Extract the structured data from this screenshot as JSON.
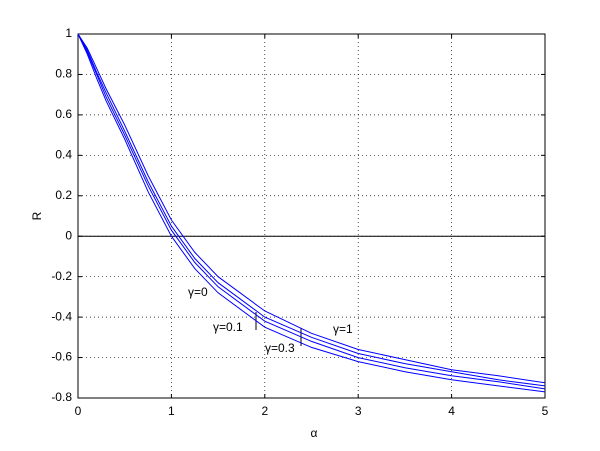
{
  "chart_data": {
    "type": "line",
    "x_label": "α",
    "y_label": "R",
    "x": [
      0,
      0.1,
      0.2,
      0.3,
      0.5,
      0.75,
      1,
      1.25,
      1.5,
      2,
      2.5,
      3,
      3.5,
      4,
      4.5,
      5
    ],
    "series": [
      {
        "name": "γ=0",
        "color": "#0000ff",
        "values": [
          1,
          0.93,
          0.83,
          0.73,
          0.55,
          0.3,
          0.08,
          -0.08,
          -0.2,
          -0.37,
          -0.48,
          -0.56,
          -0.61,
          -0.66,
          -0.69,
          -0.725
        ]
      },
      {
        "name": "γ=0.1",
        "color": "#0000ff",
        "values": [
          1,
          0.92,
          0.81,
          0.71,
          0.52,
          0.27,
          0.05,
          -0.11,
          -0.23,
          -0.4,
          -0.5,
          -0.58,
          -0.63,
          -0.67,
          -0.71,
          -0.74
        ]
      },
      {
        "name": "γ=0.3",
        "color": "#0000ff",
        "values": [
          1,
          0.91,
          0.8,
          0.69,
          0.5,
          0.25,
          0.03,
          -0.13,
          -0.25,
          -0.42,
          -0.52,
          -0.6,
          -0.65,
          -0.69,
          -0.72,
          -0.755
        ]
      },
      {
        "name": "γ=1",
        "color": "#0000ff",
        "values": [
          1,
          0.9,
          0.78,
          0.67,
          0.48,
          0.22,
          0,
          -0.16,
          -0.28,
          -0.45,
          -0.55,
          -0.62,
          -0.67,
          -0.71,
          -0.74,
          -0.77
        ]
      }
    ],
    "xlim": [
      0,
      5
    ],
    "xticks": [
      0,
      1,
      2,
      3,
      4,
      5
    ],
    "ylim": [
      -0.8,
      1
    ],
    "yticks": [
      -0.8,
      -0.6,
      -0.4,
      -0.2,
      0,
      0.2,
      0.4,
      0.6,
      0.8,
      1
    ],
    "grid": true,
    "zero_line": true
  }
}
